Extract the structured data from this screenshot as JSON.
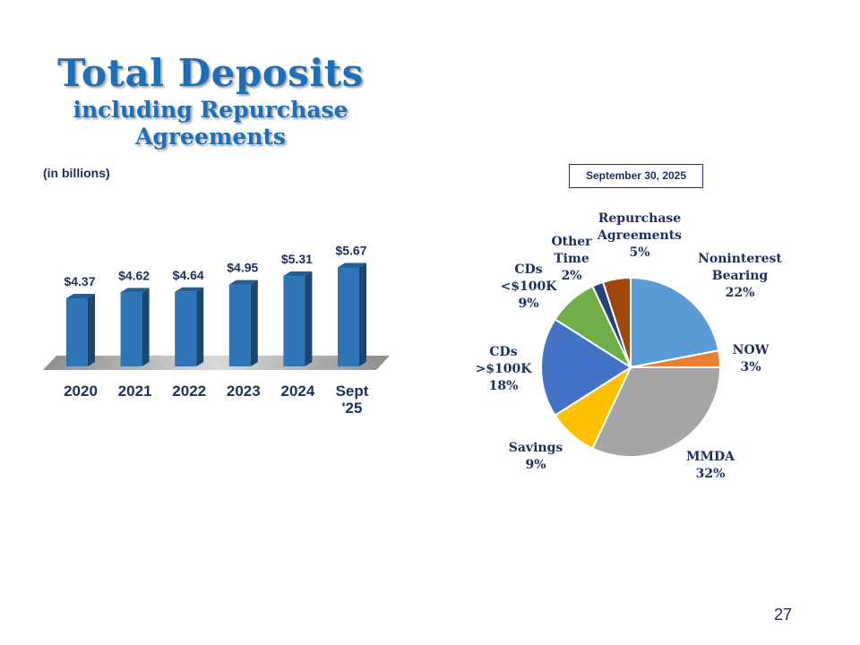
{
  "title": {
    "main": "Total Deposits",
    "sub_line1": "including Repurchase",
    "sub_line2": "Agreements"
  },
  "unit_note": "(in billions)",
  "pie_date": "September 30, 2025",
  "page_number": "27",
  "chart_data": [
    {
      "type": "bar",
      "categories": [
        [
          "2020"
        ],
        [
          "2021"
        ],
        [
          "2022"
        ],
        [
          "2023"
        ],
        [
          "2024"
        ],
        [
          "Sept",
          "'25"
        ]
      ],
      "values": [
        4.37,
        4.62,
        4.64,
        4.95,
        5.31,
        5.67
      ],
      "value_labels": [
        "$4.37",
        "$4.62",
        "$4.64",
        "$4.95",
        "$5.31",
        "$5.67"
      ],
      "color": "#2e75b6"
    },
    {
      "type": "pie",
      "title": "September 30, 2025",
      "slices": [
        {
          "label": [
            "Noninterest",
            "Bearing",
            "22%"
          ],
          "value": 22,
          "color": "#5b9bd5"
        },
        {
          "label": [
            "NOW",
            "3%"
          ],
          "value": 3,
          "color": "#ed7d31"
        },
        {
          "label": [
            "MMDA",
            "32%"
          ],
          "value": 32,
          "color": "#a5a5a5"
        },
        {
          "label": [
            "Savings",
            "9%"
          ],
          "value": 9,
          "color": "#ffc000"
        },
        {
          "label": [
            "CDs",
            ">$100K",
            "18%"
          ],
          "value": 18,
          "color": "#4472c4"
        },
        {
          "label": [
            "CDs",
            "<$100K",
            "9%"
          ],
          "value": 9,
          "color": "#70ad47"
        },
        {
          "label": [
            "Other",
            "Time",
            "2%"
          ],
          "value": 2,
          "color": "#264478"
        },
        {
          "label": [
            "Repurchase",
            "Agreements",
            "5%"
          ],
          "value": 5,
          "color": "#9e480e"
        }
      ]
    }
  ]
}
